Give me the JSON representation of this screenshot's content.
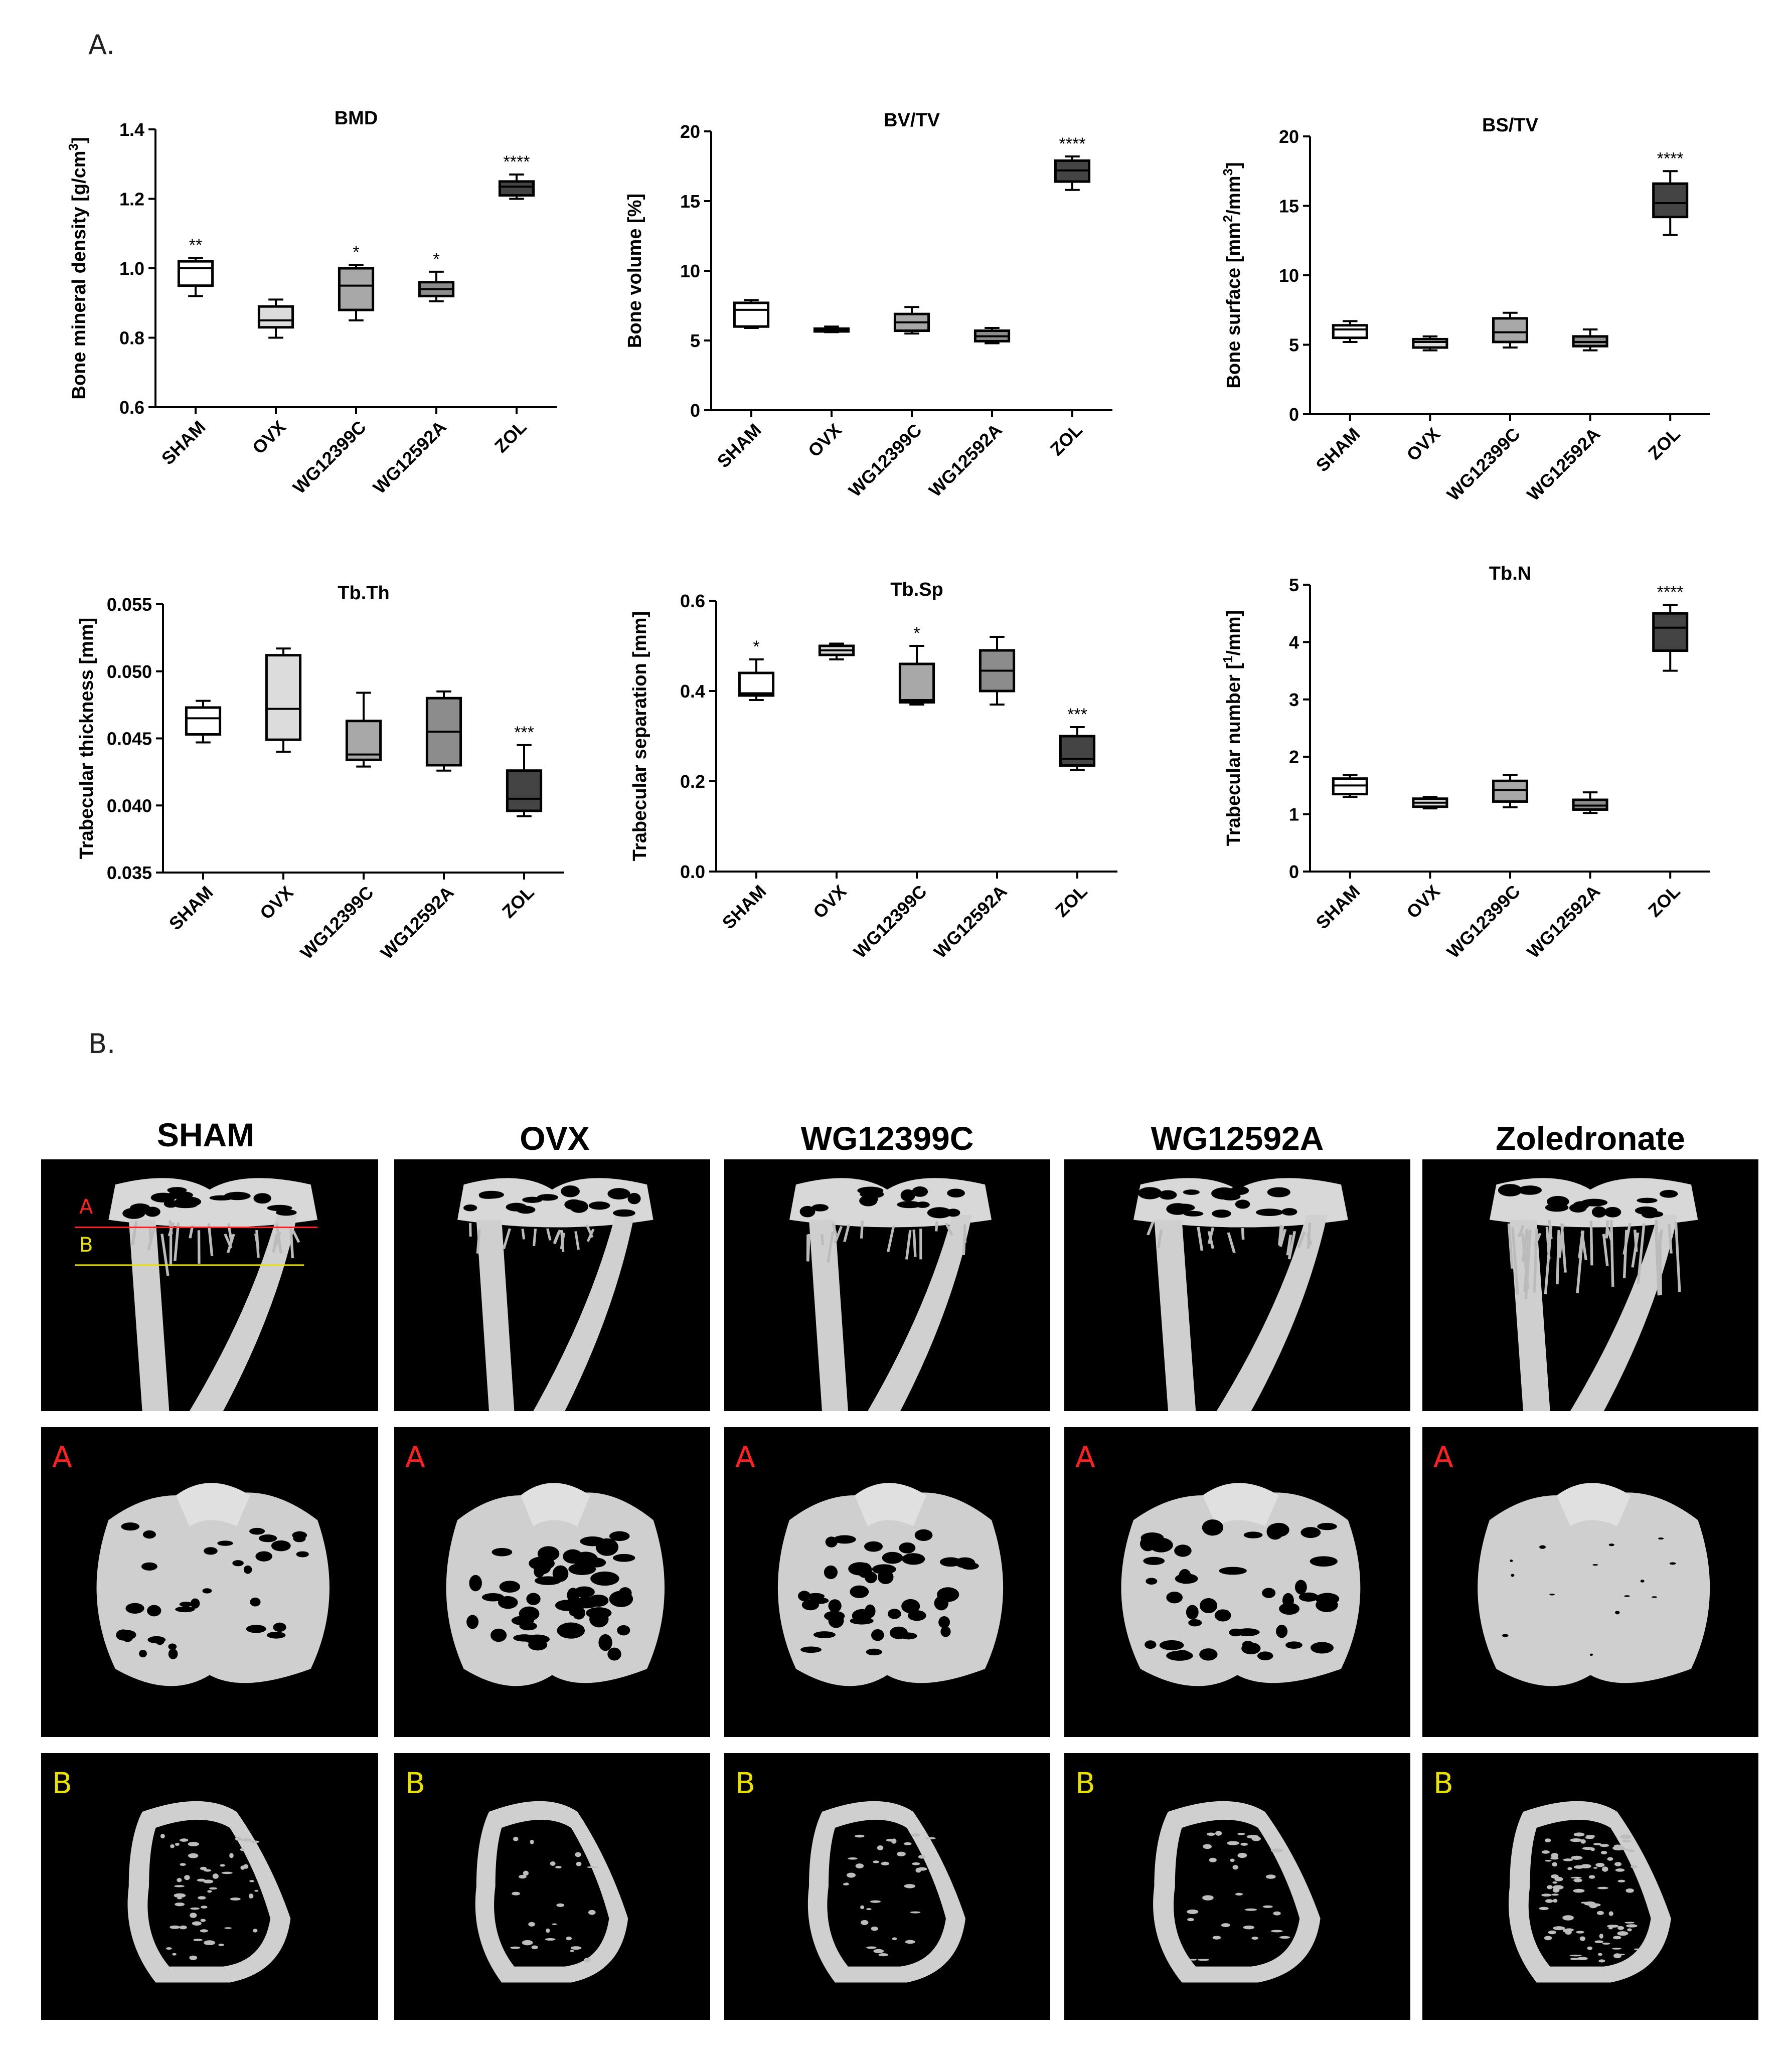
{
  "panel_a_label": "A.",
  "panel_b_label": "B.",
  "chart_data": [
    {
      "type": "box",
      "title": "BMD",
      "ylabel": "Bone mineral density [g/cm3]",
      "ylim": [
        0.6,
        1.4
      ],
      "yticks": [
        "0.6",
        "0.8",
        "1.0",
        "1.2",
        "1.4"
      ],
      "categories": [
        "SHAM",
        "OVX",
        "WG12399C",
        "WG12592A",
        "ZOL"
      ],
      "fills": [
        "#ffffff",
        "#dcdcdc",
        "#a8a8a8",
        "#8c8c8c",
        "#444444"
      ],
      "boxes": [
        {
          "min": 0.92,
          "q1": 0.95,
          "median": 1.0,
          "q3": 1.02,
          "max": 1.03
        },
        {
          "min": 0.8,
          "q1": 0.83,
          "median": 0.85,
          "q3": 0.89,
          "max": 0.91
        },
        {
          "min": 0.85,
          "q1": 0.88,
          "median": 0.95,
          "q3": 1.0,
          "max": 1.01
        },
        {
          "min": 0.905,
          "q1": 0.92,
          "median": 0.94,
          "q3": 0.96,
          "max": 0.99
        },
        {
          "min": 1.2,
          "q1": 1.21,
          "median": 1.235,
          "q3": 1.25,
          "max": 1.27
        }
      ],
      "significance": [
        "**",
        "",
        "*",
        "*",
        "****"
      ]
    },
    {
      "type": "box",
      "title": "BV/TV",
      "ylabel": "Bone volume [%]",
      "ylim": [
        0,
        20
      ],
      "yticks": [
        "0",
        "5",
        "10",
        "15",
        "20"
      ],
      "categories": [
        "SHAM",
        "OVX",
        "WG12399C",
        "WG12592A",
        "ZOL"
      ],
      "fills": [
        "#ffffff",
        "#dcdcdc",
        "#a8a8a8",
        "#8c8c8c",
        "#444444"
      ],
      "boxes": [
        {
          "min": 5.9,
          "q1": 6.0,
          "median": 7.2,
          "q3": 7.7,
          "max": 7.9
        },
        {
          "min": 5.6,
          "q1": 5.65,
          "median": 5.75,
          "q3": 5.85,
          "max": 6.0
        },
        {
          "min": 5.5,
          "q1": 5.7,
          "median": 6.3,
          "q3": 6.9,
          "max": 7.4
        },
        {
          "min": 4.8,
          "q1": 4.95,
          "median": 5.3,
          "q3": 5.7,
          "max": 5.9
        },
        {
          "min": 15.8,
          "q1": 16.4,
          "median": 17.2,
          "q3": 17.9,
          "max": 18.2
        }
      ],
      "significance": [
        "",
        "",
        "",
        "",
        "****"
      ]
    },
    {
      "type": "box",
      "title": "BS/TV",
      "ylabel": "Bone surface [mm2/mm3]",
      "ylim": [
        0,
        20
      ],
      "yticks": [
        "0",
        "5",
        "10",
        "15",
        "20"
      ],
      "categories": [
        "SHAM",
        "OVX",
        "WG12399C",
        "WG12592A",
        "ZOL"
      ],
      "fills": [
        "#ffffff",
        "#dcdcdc",
        "#a8a8a8",
        "#8c8c8c",
        "#444444"
      ],
      "boxes": [
        {
          "min": 5.2,
          "q1": 5.5,
          "median": 6.1,
          "q3": 6.4,
          "max": 6.7
        },
        {
          "min": 4.6,
          "q1": 4.8,
          "median": 5.2,
          "q3": 5.4,
          "max": 5.6
        },
        {
          "min": 4.8,
          "q1": 5.2,
          "median": 5.9,
          "q3": 6.9,
          "max": 7.3
        },
        {
          "min": 4.6,
          "q1": 4.9,
          "median": 5.2,
          "q3": 5.6,
          "max": 6.1
        },
        {
          "min": 12.9,
          "q1": 14.2,
          "median": 15.2,
          "q3": 16.6,
          "max": 17.5
        }
      ],
      "significance": [
        "",
        "",
        "",
        "",
        "****"
      ]
    },
    {
      "type": "box",
      "title": "Tb.Th",
      "ylabel": "Trabecular thickness [mm]",
      "ylim": [
        0.035,
        0.055
      ],
      "yticks": [
        "0.035",
        "0.040",
        "0.045",
        "0.050",
        "0.055"
      ],
      "categories": [
        "SHAM",
        "OVX",
        "WG12399C",
        "WG12592A",
        "ZOL"
      ],
      "fills": [
        "#ffffff",
        "#dcdcdc",
        "#a8a8a8",
        "#8c8c8c",
        "#444444"
      ],
      "boxes": [
        {
          "min": 0.0447,
          "q1": 0.0453,
          "median": 0.0465,
          "q3": 0.0473,
          "max": 0.0478
        },
        {
          "min": 0.044,
          "q1": 0.0449,
          "median": 0.0472,
          "q3": 0.0512,
          "max": 0.0517
        },
        {
          "min": 0.0429,
          "q1": 0.0434,
          "median": 0.0438,
          "q3": 0.0463,
          "max": 0.0484
        },
        {
          "min": 0.0426,
          "q1": 0.043,
          "median": 0.0455,
          "q3": 0.048,
          "max": 0.0485
        },
        {
          "min": 0.0392,
          "q1": 0.0396,
          "median": 0.0405,
          "q3": 0.0426,
          "max": 0.0445
        }
      ],
      "significance": [
        "",
        "",
        "",
        "",
        "***"
      ]
    },
    {
      "type": "box",
      "title": "Tb.Sp",
      "ylabel": "Trabecular separation [mm]",
      "ylim": [
        0,
        0.6
      ],
      "yticks": [
        "0.0",
        "0.2",
        "0.4",
        "0.6"
      ],
      "categories": [
        "SHAM",
        "OVX",
        "WG12399C",
        "WG12592A",
        "ZOL"
      ],
      "fills": [
        "#ffffff",
        "#dcdcdc",
        "#a8a8a8",
        "#8c8c8c",
        "#444444"
      ],
      "boxes": [
        {
          "min": 0.38,
          "q1": 0.39,
          "median": 0.395,
          "q3": 0.44,
          "max": 0.47
        },
        {
          "min": 0.47,
          "q1": 0.48,
          "median": 0.49,
          "q3": 0.5,
          "max": 0.505
        },
        {
          "min": 0.37,
          "q1": 0.375,
          "median": 0.38,
          "q3": 0.46,
          "max": 0.5
        },
        {
          "min": 0.37,
          "q1": 0.4,
          "median": 0.445,
          "q3": 0.49,
          "max": 0.52
        },
        {
          "min": 0.225,
          "q1": 0.235,
          "median": 0.25,
          "q3": 0.3,
          "max": 0.32
        }
      ],
      "significance": [
        "*",
        "",
        "*",
        "",
        "***"
      ]
    },
    {
      "type": "box",
      "title": "Tb.N",
      "ylabel": "Trabecular number [1/mm]",
      "ylim": [
        0,
        5
      ],
      "yticks": [
        "0",
        "1",
        "2",
        "3",
        "4",
        "5"
      ],
      "categories": [
        "SHAM",
        "OVX",
        "WG12399C",
        "WG12592A",
        "ZOL"
      ],
      "fills": [
        "#ffffff",
        "#dcdcdc",
        "#a8a8a8",
        "#8c8c8c",
        "#444444"
      ],
      "boxes": [
        {
          "min": 1.3,
          "q1": 1.35,
          "median": 1.5,
          "q3": 1.62,
          "max": 1.68
        },
        {
          "min": 1.1,
          "q1": 1.13,
          "median": 1.2,
          "q3": 1.27,
          "max": 1.3
        },
        {
          "min": 1.12,
          "q1": 1.22,
          "median": 1.42,
          "q3": 1.58,
          "max": 1.68
        },
        {
          "min": 1.02,
          "q1": 1.08,
          "median": 1.15,
          "q3": 1.25,
          "max": 1.38
        },
        {
          "min": 3.5,
          "q1": 3.85,
          "median": 4.25,
          "q3": 4.5,
          "max": 4.65
        }
      ],
      "significance": [
        "",
        "",
        "",
        "",
        "****"
      ]
    }
  ],
  "image_grid": {
    "columns": [
      "SHAM",
      "OVX",
      "WG12399C",
      "WG12592A",
      "Zoledronate"
    ],
    "overlay_line_a": "A",
    "overlay_line_b": "B",
    "row_a_letter": "A",
    "row_b_letter": "B",
    "line_a_color": "#ff2020",
    "line_b_color": "#e8e000"
  }
}
